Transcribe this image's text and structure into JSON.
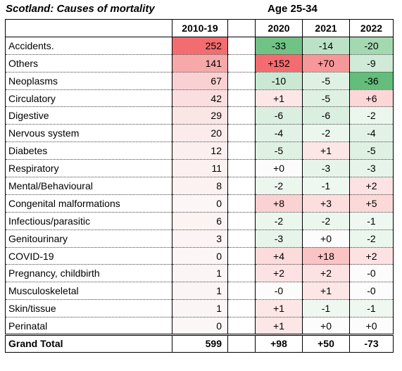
{
  "title": "Scotland: Causes of mortality",
  "subtitle": "Age  25-34",
  "columns": {
    "base": "2010-19",
    "y2020": "2020",
    "y2021": "2021",
    "y2022": "2022"
  },
  "colors": {
    "red_strong": "#f36c6f",
    "red_mid": "#f8aeb0",
    "green_strong": "#64bd7b",
    "green_mid": "#b1dcb9"
  },
  "rows": [
    {
      "name": "Accidents.",
      "base": "252",
      "y2020": "-33",
      "y2021": "-14",
      "y2022": "-20"
    },
    {
      "name": "Others",
      "base": "141",
      "y2020": "+152",
      "y2021": "+70",
      "y2022": "-9"
    },
    {
      "name": "Neoplasms",
      "base": "67",
      "y2020": "-10",
      "y2021": "-5",
      "y2022": "-36"
    },
    {
      "name": "Circulatory",
      "base": "42",
      "y2020": "+1",
      "y2021": "-5",
      "y2022": "+6"
    },
    {
      "name": "Digestive",
      "base": "29",
      "y2020": "-6",
      "y2021": "-6",
      "y2022": "-2"
    },
    {
      "name": "Nervous system",
      "base": "20",
      "y2020": "-4",
      "y2021": "-2",
      "y2022": "-4"
    },
    {
      "name": "Diabetes",
      "base": "12",
      "y2020": "-5",
      "y2021": "+1",
      "y2022": "-5"
    },
    {
      "name": "Respiratory",
      "base": "11",
      "y2020": "+0",
      "y2021": "-3",
      "y2022": "-3"
    },
    {
      "name": "Mental/Behavioural",
      "base": "8",
      "y2020": "-2",
      "y2021": "-1",
      "y2022": "+2"
    },
    {
      "name": "Congenital malformations",
      "base": "0",
      "y2020": "+8",
      "y2021": "+3",
      "y2022": "+5"
    },
    {
      "name": "Infectious/parasitic",
      "base": "6",
      "y2020": "-2",
      "y2021": "-2",
      "y2022": "-1"
    },
    {
      "name": "Genitourinary",
      "base": "3",
      "y2020": "-3",
      "y2021": "+0",
      "y2022": "-2"
    },
    {
      "name": "COVID-19",
      "base": "0",
      "y2020": "+4",
      "y2021": "+18",
      "y2022": "+2"
    },
    {
      "name": "Pregnancy, childbirth",
      "base": "1",
      "y2020": "+2",
      "y2021": "+2",
      "y2022": "-0"
    },
    {
      "name": "Musculoskeletal",
      "base": "1",
      "y2020": "-0",
      "y2021": "+1",
      "y2022": "-0"
    },
    {
      "name": "Skin/tissue",
      "base": "1",
      "y2020": "+1",
      "y2021": "-1",
      "y2022": "-1"
    },
    {
      "name": "Perinatal",
      "base": "0",
      "y2020": "+1",
      "y2021": "+0",
      "y2022": "+0"
    }
  ],
  "total": {
    "name": "Grand Total",
    "base": "599",
    "y2020": "+98",
    "y2021": "+50",
    "y2022": "-73"
  }
}
